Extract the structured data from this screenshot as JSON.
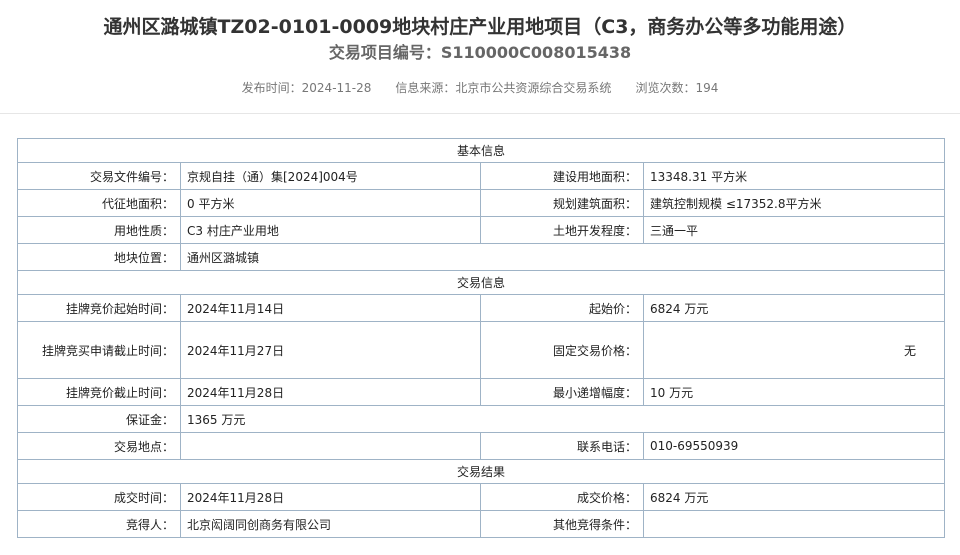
{
  "header": {
    "title": "通州区潞城镇TZ02-0101-0009地块村庄产业用地项目（C3，商务办公等多功能用途）",
    "subtitle": "交易项目编号：S110000C008015438",
    "meta": [
      {
        "label": "发布时间：",
        "value": "2024-11-28"
      },
      {
        "label": "信息来源：",
        "value": "北京市公共资源综合交易系统"
      },
      {
        "label": "浏览次数：",
        "value": "194"
      }
    ]
  },
  "table": {
    "sections": [
      {
        "title": "基本信息",
        "rows": [
          {
            "label": "交易文件编号：",
            "value": "京规自挂（通）集[2024]004号",
            "label2": "建设用地面积：",
            "value2": "13348.31 平方米"
          },
          {
            "label": "代征地面积：",
            "value": "0 平方米",
            "label2": "规划建筑面积：",
            "value2": "建筑控制规模 ≤17352.8平方米"
          },
          {
            "label": "用地性质：",
            "value": "C3 村庄产业用地",
            "label2": "土地开发程度：",
            "value2": "三通一平"
          },
          {
            "label": "地块位置：",
            "value": "通州区潞城镇"
          }
        ]
      },
      {
        "title": "交易信息",
        "rows": [
          {
            "label": "挂牌竞价起始时间：",
            "value": "2024年11月14日",
            "label2": "起始价：",
            "value2": "6824 万元"
          },
          {
            "label": "挂牌竞买申请截止时间：",
            "value": "2024年11月27日",
            "label2": "固定交易价格：",
            "value2": "无"
          },
          {
            "label": "挂牌竞价截止时间：",
            "value": "2024年11月28日",
            "label2": "最小递增幅度：",
            "value2": "10 万元"
          },
          {
            "label": "保证金：",
            "value": "1365 万元"
          },
          {
            "label": "交易地点：",
            "label2": "联系电话：",
            "value2": "010-69550939"
          }
        ]
      },
      {
        "title": "交易结果",
        "rows": [
          {
            "label": "成交时间：",
            "value": "2024年11月28日",
            "label2": "成交价格：",
            "value2": "6824 万元"
          },
          {
            "label": "竞得人：",
            "value": "北京闳阔同创商务有限公司",
            "label2": "其他竞得条件："
          }
        ]
      }
    ]
  }
}
